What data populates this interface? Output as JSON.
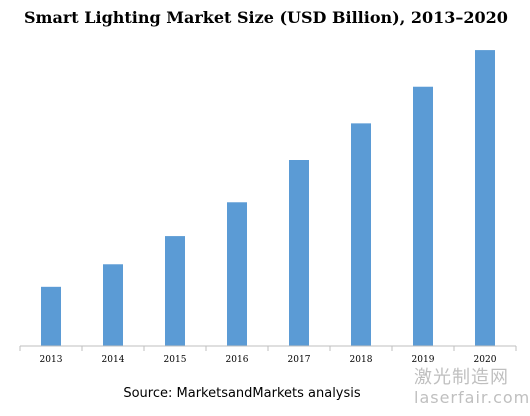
{
  "watermark": {
    "line1": "激光制造网",
    "line2": "laserfair.com"
  },
  "source_note": "Source: MarketsandMarkets analysis",
  "chart_data": {
    "type": "bar",
    "title": "Smart Lighting Market Size (USD Billion), 2013–2020",
    "xlabel": "",
    "ylabel": "",
    "categories": [
      "2013",
      "2014",
      "2015",
      "2016",
      "2017",
      "2018",
      "2019",
      "2020"
    ],
    "values": [
      2.1,
      2.9,
      3.9,
      5.1,
      6.6,
      7.9,
      9.2,
      10.5
    ],
    "ylim": [
      0,
      11
    ],
    "grid": false,
    "y_axis_visible": false,
    "bar_color": "#5b9bd5",
    "axis_color": "#bfbfbf"
  }
}
